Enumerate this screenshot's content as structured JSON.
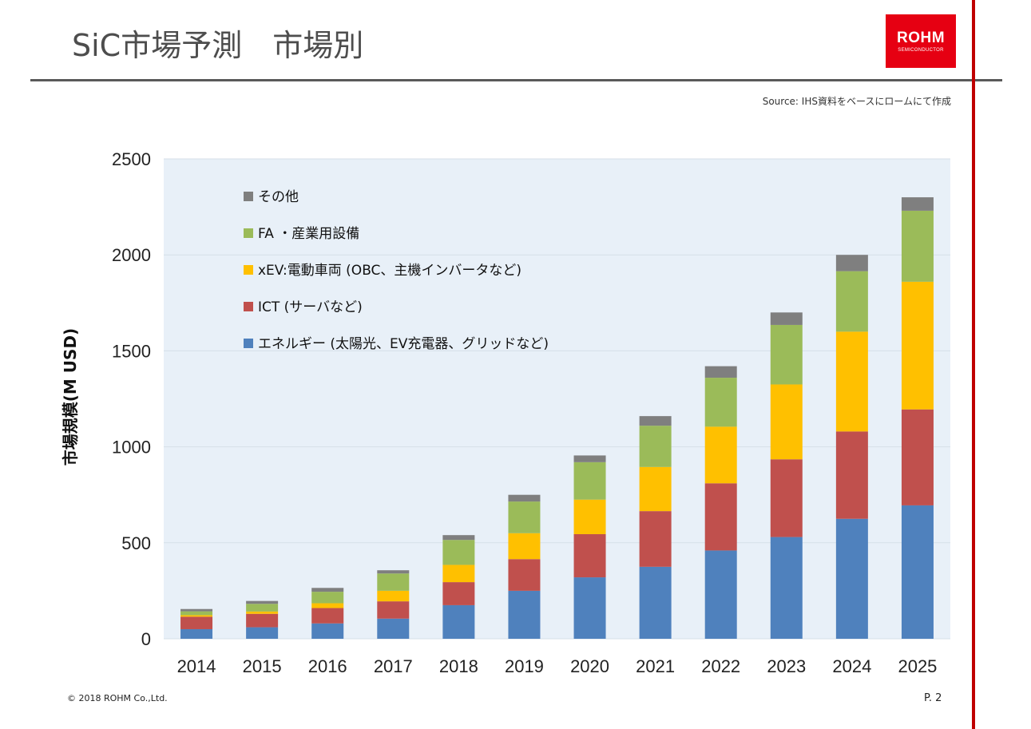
{
  "slide": {
    "title": "SiC市場予測　市場別",
    "logo_main": "ROHM",
    "logo_sub": "SEMICONDUCTOR",
    "source": "Source: IHS資料をベースにロームにて作成",
    "copyright": "©  2018 ROHM Co.,Ltd.",
    "page": "P. 2"
  },
  "colors": {
    "accent_red": "#c00000",
    "plot_bg": "#e8f0f8",
    "gridline": "#d6dfe8"
  },
  "chart_data": {
    "type": "bar",
    "stacked": true,
    "title": "",
    "xlabel": "",
    "ylabel": "市場規模(M USD)",
    "ylim": [
      0,
      2500
    ],
    "yticks": [
      0,
      500,
      1000,
      1500,
      2000,
      2500
    ],
    "legend_position": "top-left",
    "categories": [
      "2014",
      "2015",
      "2016",
      "2017",
      "2018",
      "2019",
      "2020",
      "2021",
      "2022",
      "2023",
      "2024",
      "2025"
    ],
    "series": [
      {
        "name": "エネルギー (太陽光、EV充電器、グリッドなど)",
        "color": "#4f81bd",
        "values": [
          50,
          60,
          80,
          105,
          175,
          250,
          320,
          375,
          460,
          530,
          625,
          695
        ]
      },
      {
        "name": "ICT (サーバなど)",
        "color": "#c0504d",
        "values": [
          65,
          70,
          80,
          90,
          120,
          165,
          225,
          290,
          350,
          405,
          455,
          500
        ]
      },
      {
        "name": "xEV:電動車両 (OBC、主機インバータなど)",
        "color": "#ffc000",
        "values": [
          8,
          12,
          25,
          55,
          90,
          135,
          180,
          230,
          295,
          390,
          520,
          665
        ]
      },
      {
        "name": "FA ・産業用設備",
        "color": "#9bbb59",
        "values": [
          20,
          40,
          60,
          90,
          130,
          165,
          195,
          215,
          255,
          310,
          315,
          370
        ]
      },
      {
        "name": "その他",
        "color": "#7f7f7f",
        "values": [
          12,
          15,
          20,
          17,
          25,
          35,
          35,
          50,
          60,
          65,
          85,
          70
        ]
      }
    ]
  }
}
